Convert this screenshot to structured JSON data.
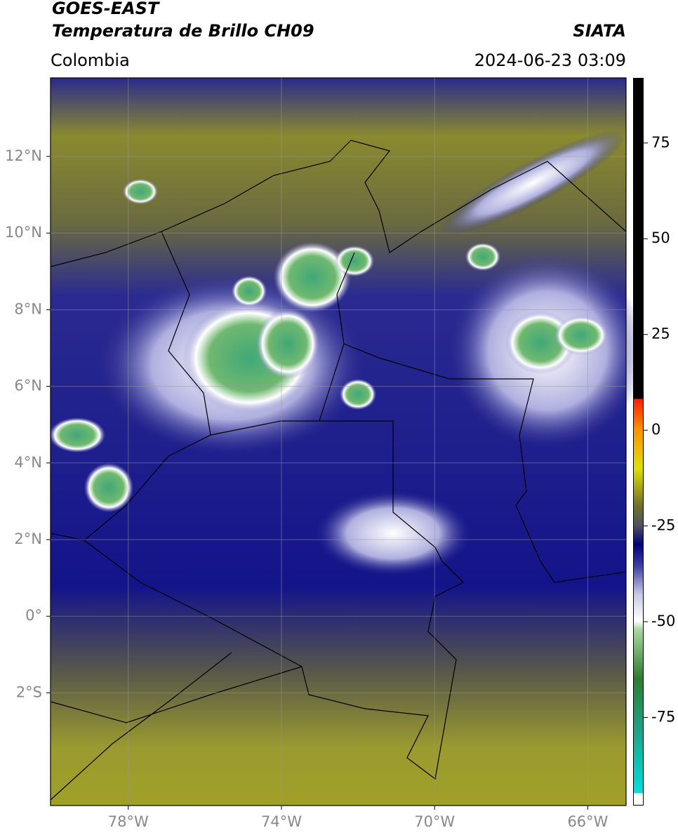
{
  "header": {
    "title": "GOES-EAST",
    "subtitle": "Temperatura de Brillo CH09",
    "region": "Colombia",
    "source": "SIATA",
    "datetime": "2024-06-23 03:09"
  },
  "map": {
    "xlim": [
      -80.03,
      -65.0
    ],
    "ylim": [
      -4.94,
      14.05
    ],
    "xticks": [
      {
        "value": -78,
        "label": "78°W"
      },
      {
        "value": -74,
        "label": "74°W"
      },
      {
        "value": -70,
        "label": "70°W"
      },
      {
        "value": -66,
        "label": "66°W"
      }
    ],
    "yticks": [
      {
        "value": 12,
        "label": "12°N"
      },
      {
        "value": 10,
        "label": "10°N"
      },
      {
        "value": 8,
        "label": "8°N"
      },
      {
        "value": 6,
        "label": "6°N"
      },
      {
        "value": 4,
        "label": "4°N"
      },
      {
        "value": 2,
        "label": "2°N"
      },
      {
        "value": 0,
        "label": "0°"
      },
      {
        "value": -2,
        "label": "2°S"
      }
    ],
    "grid": true
  },
  "colorbar": {
    "lim": [
      -98,
      92
    ],
    "ticks": [
      75,
      50,
      25,
      0,
      -25,
      -50,
      -75
    ]
  }
}
